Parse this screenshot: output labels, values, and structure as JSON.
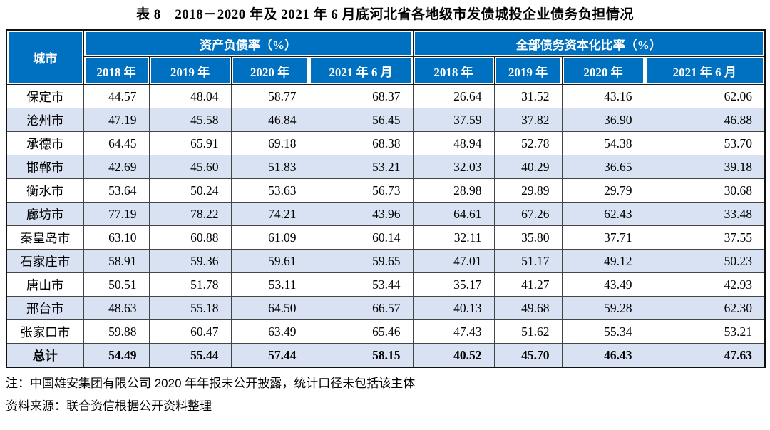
{
  "title": "表 8　2018－2020 年及 2021 年 6 月底河北省各地级市发债城投企业债务负担情况",
  "colors": {
    "header_blue": "#0070C0",
    "stripe_blue": "#D9E2F2",
    "grid_line": "#454545",
    "outer_border": "#101010"
  },
  "table": {
    "corner_header": "城市",
    "groups": [
      {
        "label": "资产负债率（%）",
        "years": [
          "2018 年",
          "2019 年",
          "2020 年",
          "2021 年 6 月"
        ]
      },
      {
        "label": "全部债务资本化比率（%）",
        "years": [
          "2018 年",
          "2019 年",
          "2020 年",
          "2021 年 6 月"
        ]
      }
    ],
    "rows": [
      {
        "city": "保定市",
        "alr": [
          "44.57",
          "48.04",
          "58.77",
          "68.37"
        ],
        "tdc": [
          "26.64",
          "31.52",
          "43.16",
          "62.06"
        ]
      },
      {
        "city": "沧州市",
        "alr": [
          "47.19",
          "45.58",
          "46.84",
          "56.45"
        ],
        "tdc": [
          "37.59",
          "37.82",
          "36.90",
          "46.88"
        ]
      },
      {
        "city": "承德市",
        "alr": [
          "64.45",
          "65.91",
          "69.18",
          "68.38"
        ],
        "tdc": [
          "48.94",
          "52.78",
          "54.38",
          "53.70"
        ]
      },
      {
        "city": "邯郸市",
        "alr": [
          "42.69",
          "45.60",
          "51.83",
          "53.21"
        ],
        "tdc": [
          "32.03",
          "40.29",
          "36.65",
          "39.18"
        ]
      },
      {
        "city": "衡水市",
        "alr": [
          "53.64",
          "50.24",
          "53.63",
          "56.73"
        ],
        "tdc": [
          "28.98",
          "29.89",
          "29.79",
          "30.68"
        ]
      },
      {
        "city": "廊坊市",
        "alr": [
          "77.19",
          "78.22",
          "74.21",
          "43.96"
        ],
        "tdc": [
          "64.61",
          "67.26",
          "62.43",
          "33.48"
        ]
      },
      {
        "city": "秦皇岛市",
        "alr": [
          "63.10",
          "60.88",
          "61.09",
          "60.14"
        ],
        "tdc": [
          "32.11",
          "35.80",
          "37.71",
          "37.55"
        ]
      },
      {
        "city": "石家庄市",
        "alr": [
          "58.91",
          "59.36",
          "59.61",
          "59.65"
        ],
        "tdc": [
          "47.01",
          "51.17",
          "49.12",
          "50.23"
        ]
      },
      {
        "city": "唐山市",
        "alr": [
          "50.51",
          "51.78",
          "53.11",
          "53.44"
        ],
        "tdc": [
          "35.17",
          "41.27",
          "43.49",
          "42.93"
        ]
      },
      {
        "city": "邢台市",
        "alr": [
          "48.63",
          "55.18",
          "64.50",
          "66.57"
        ],
        "tdc": [
          "40.13",
          "49.68",
          "59.28",
          "62.30"
        ]
      },
      {
        "city": "张家口市",
        "alr": [
          "59.88",
          "60.47",
          "63.49",
          "65.46"
        ],
        "tdc": [
          "47.43",
          "51.62",
          "55.34",
          "53.21"
        ]
      }
    ],
    "total_row": {
      "city": "总计",
      "alr": [
        "54.49",
        "55.44",
        "57.44",
        "58.15"
      ],
      "tdc": [
        "40.52",
        "45.70",
        "46.43",
        "47.63"
      ]
    }
  },
  "notes": [
    "注：中国雄安集团有限公司 2020 年年报未公开披露，统计口径未包括该主体",
    "资料来源：联合资信根据公开资料整理"
  ]
}
